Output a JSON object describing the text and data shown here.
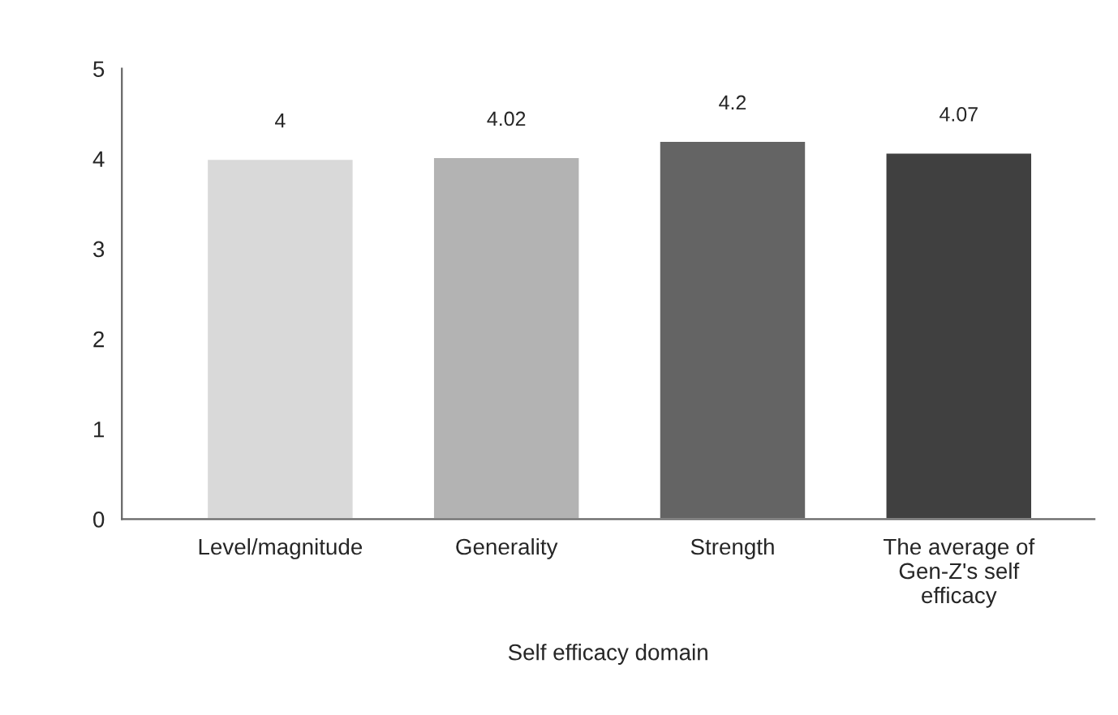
{
  "chart_data": {
    "type": "bar",
    "xlabel": "Self efficacy domain",
    "categories": [
      "Level/magnitude",
      "Generality",
      "Strength",
      "The average of\nGen-Z's self\nefficacy"
    ],
    "values": [
      4,
      4.02,
      4.2,
      4.07
    ],
    "colors": [
      "#d9d9d9",
      "#b3b3b3",
      "#646464",
      "#404040"
    ],
    "ylim": [
      0,
      5
    ],
    "yticks": [
      0,
      1,
      2,
      3,
      4,
      5
    ],
    "grid": false,
    "data_labels": true
  }
}
